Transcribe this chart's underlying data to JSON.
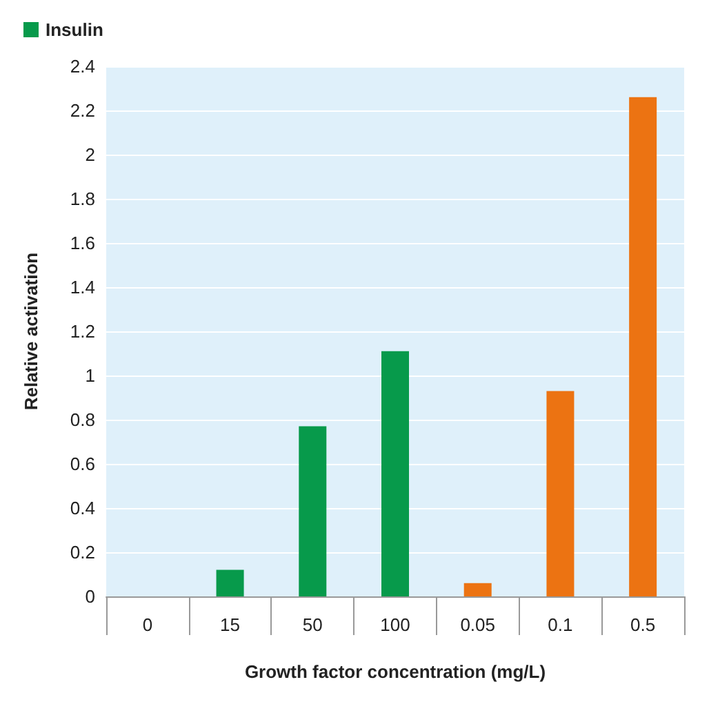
{
  "chart_data": {
    "type": "bar",
    "xlabel": "Growth factor concentration (mg/L)",
    "ylabel": "Relative activation",
    "categories": [
      "0",
      "15",
      "50",
      "100",
      "0.05",
      "0.1",
      "0.5"
    ],
    "series": [
      {
        "color": "#ec7312",
        "values": [
          null,
          null,
          null,
          null,
          0.06,
          0.93,
          2.26
        ]
      },
      {
        "name": "Insulin",
        "color": "#079a4b",
        "values": [
          null,
          0.12,
          0.77,
          1.11,
          null,
          null,
          null
        ]
      }
    ],
    "ylim": [
      0,
      2.4
    ],
    "yticks": [
      0,
      0.2,
      0.4,
      0.6,
      0.8,
      1,
      1.2,
      1.4,
      1.6,
      1.8,
      2,
      2.2,
      2.4
    ],
    "grid": "y",
    "legend": "top left"
  }
}
